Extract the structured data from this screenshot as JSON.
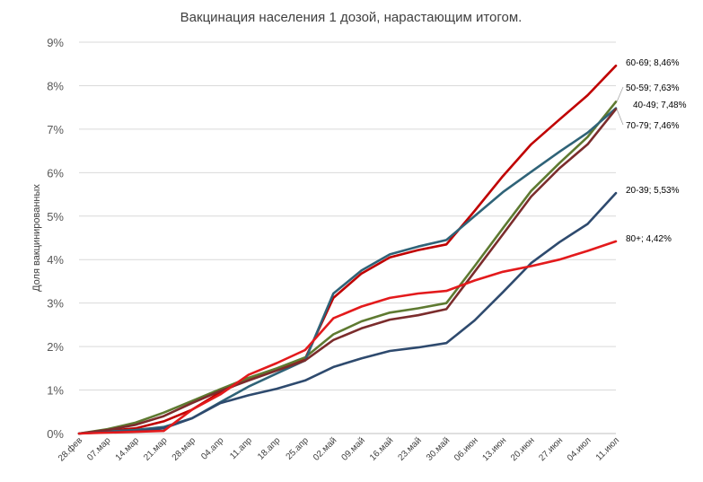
{
  "chart_data": {
    "type": "line",
    "title": "Вакцинация населения 1 дозой, нарастающим итогом.",
    "ylabel": "Доля вакцинированных",
    "xlabel": "",
    "ylim": [
      0,
      9
    ],
    "yticks": [
      "0%",
      "1%",
      "2%",
      "3%",
      "4%",
      "5%",
      "6%",
      "7%",
      "8%",
      "9%"
    ],
    "grid": true,
    "legend": "none",
    "categories": [
      "28.фев",
      "07.мар",
      "14.мар",
      "21.мар",
      "28.мар",
      "04.апр",
      "11.апр",
      "18.апр",
      "25.апр",
      "02.май",
      "09.май",
      "16.май",
      "23.май",
      "30.май",
      "06.июн",
      "13.июн",
      "20.июн",
      "27.июн",
      "04.июл",
      "11.июл"
    ],
    "series": [
      {
        "name": "60-69",
        "label": "60-69; 8,46%",
        "color": "#C00000",
        "values": [
          0,
          0.06,
          0.12,
          0.28,
          0.55,
          0.95,
          1.25,
          1.48,
          1.72,
          3.12,
          3.68,
          4.05,
          4.22,
          4.35,
          5.12,
          5.92,
          6.65,
          7.22,
          7.78,
          8.46
        ]
      },
      {
        "name": "50-59",
        "label": "50-59; 7,63%",
        "color": "#5E7A31",
        "values": [
          0,
          0.1,
          0.25,
          0.48,
          0.75,
          1.02,
          1.28,
          1.5,
          1.75,
          2.28,
          2.58,
          2.78,
          2.88,
          3.0,
          3.85,
          4.72,
          5.58,
          6.22,
          6.82,
          7.63
        ]
      },
      {
        "name": "40-49",
        "label": "40-49; 7,48%",
        "color": "#2F6378",
        "values": [
          0,
          0.05,
          0.08,
          0.15,
          0.35,
          0.72,
          1.08,
          1.38,
          1.68,
          3.22,
          3.75,
          4.12,
          4.3,
          4.45,
          5.0,
          5.55,
          6.02,
          6.48,
          6.92,
          7.48
        ]
      },
      {
        "name": "70-79",
        "label": "70-79; 7,46%",
        "color": "#7B2C2C",
        "values": [
          0,
          0.08,
          0.2,
          0.4,
          0.7,
          0.98,
          1.22,
          1.45,
          1.68,
          2.15,
          2.42,
          2.62,
          2.72,
          2.86,
          3.72,
          4.58,
          5.45,
          6.1,
          6.65,
          7.46
        ]
      },
      {
        "name": "20-39",
        "label": "20-39; 5,53%",
        "color": "#2E4A6E",
        "values": [
          0,
          0.03,
          0.05,
          0.12,
          0.35,
          0.7,
          0.88,
          1.03,
          1.22,
          1.53,
          1.73,
          1.9,
          1.98,
          2.08,
          2.6,
          3.25,
          3.92,
          4.4,
          4.82,
          5.53
        ]
      },
      {
        "name": "80+",
        "label": "80+; 4,42%",
        "color": "#E31A1C",
        "values": [
          0,
          0.02,
          0.04,
          0.06,
          0.55,
          0.9,
          1.35,
          1.62,
          1.92,
          2.65,
          2.92,
          3.12,
          3.22,
          3.28,
          3.52,
          3.72,
          3.85,
          4.0,
          4.2,
          4.42
        ]
      }
    ]
  }
}
